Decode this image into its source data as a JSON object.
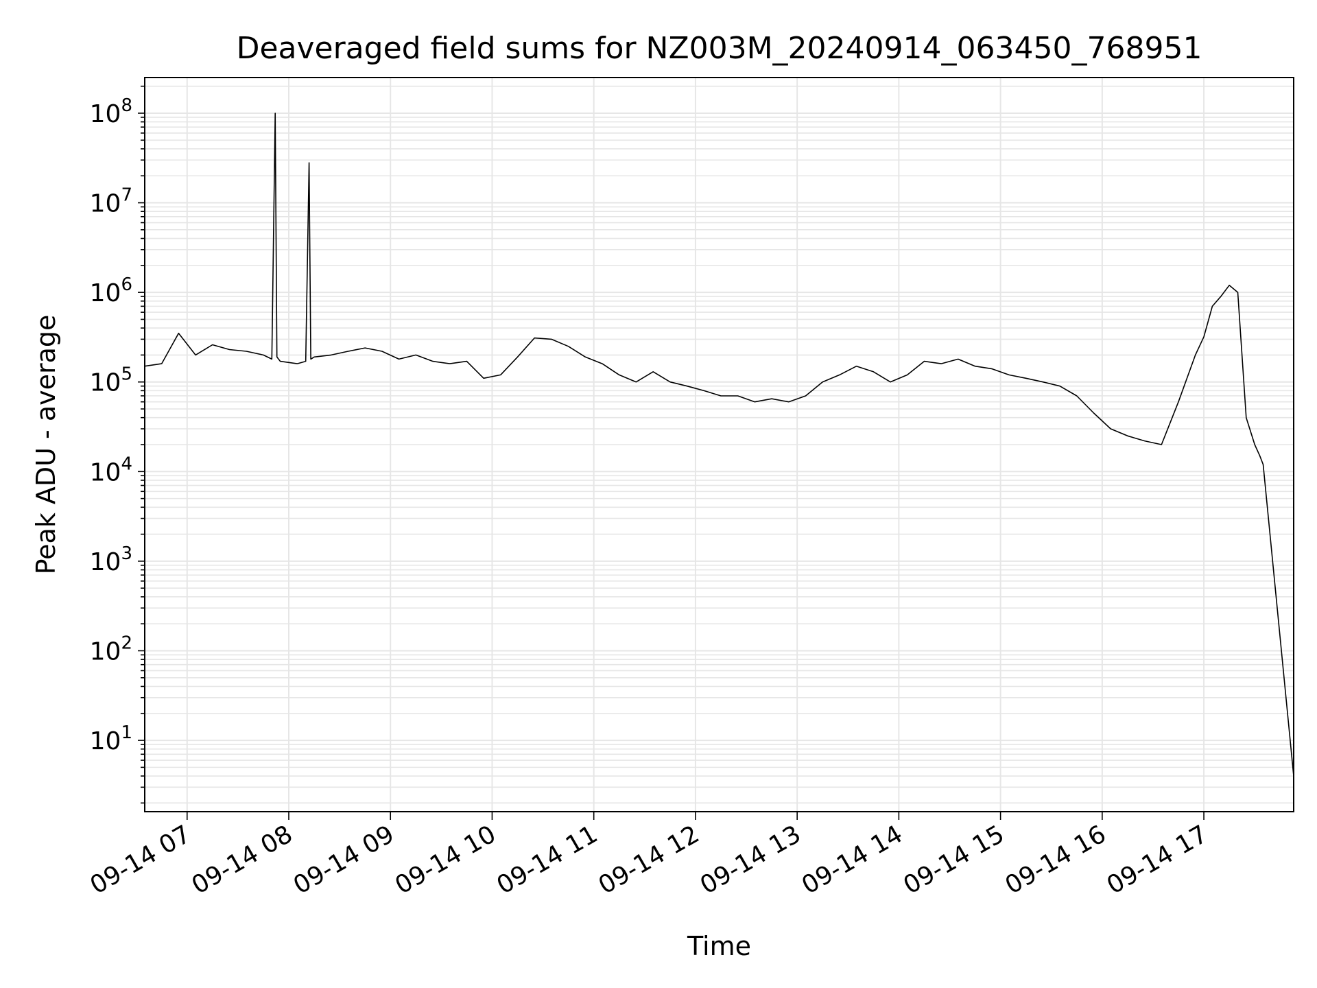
{
  "chart_data": {
    "type": "line",
    "title": "Deaveraged field sums for NZ003M_20240914_063450_768951",
    "xlabel": "Time",
    "ylabel": "Peak ADU - average",
    "yscale": "log",
    "ylim": [
      1.6,
      250000000
    ],
    "xlim": [
      "09-14 06:35",
      "09-14 17:53"
    ],
    "grid": true,
    "line_color": "#000000",
    "grid_color": "#e6e6e6",
    "x_ticks": [
      "09-14 07",
      "09-14 08",
      "09-14 09",
      "09-14 10",
      "09-14 11",
      "09-14 12",
      "09-14 13",
      "09-14 14",
      "09-14 15",
      "09-14 16",
      "09-14 17"
    ],
    "y_ticks": [
      {
        "value": 10,
        "base": "10",
        "exp": "1"
      },
      {
        "value": 100,
        "base": "10",
        "exp": "2"
      },
      {
        "value": 1000,
        "base": "10",
        "exp": "3"
      },
      {
        "value": 10000,
        "base": "10",
        "exp": "4"
      },
      {
        "value": 100000,
        "base": "10",
        "exp": "5"
      },
      {
        "value": 1000000,
        "base": "10",
        "exp": "6"
      },
      {
        "value": 10000000,
        "base": "10",
        "exp": "7"
      },
      {
        "value": 100000000,
        "base": "10",
        "exp": "8"
      }
    ],
    "series": [
      {
        "x": [
          "06:35",
          "06:45",
          "06:55",
          "07:05",
          "07:15",
          "07:25",
          "07:35",
          "07:45",
          "07:50",
          "07:52",
          "07:53",
          "07:55",
          "08:05",
          "08:10",
          "08:12",
          "08:13",
          "08:15",
          "08:25",
          "08:35",
          "08:45",
          "08:55",
          "09:05",
          "09:15",
          "09:25",
          "09:35",
          "09:45",
          "09:55",
          "10:05",
          "10:15",
          "10:25",
          "10:35",
          "10:45",
          "10:55",
          "11:05",
          "11:15",
          "11:25",
          "11:35",
          "11:45",
          "11:55",
          "12:05",
          "12:15",
          "12:25",
          "12:35",
          "12:45",
          "12:55",
          "13:05",
          "13:15",
          "13:25",
          "13:35",
          "13:45",
          "13:55",
          "14:05",
          "14:15",
          "14:25",
          "14:35",
          "14:45",
          "14:55",
          "15:05",
          "15:15",
          "15:25",
          "15:35",
          "15:45",
          "15:55",
          "16:05",
          "16:15",
          "16:25",
          "16:35",
          "16:45",
          "16:55",
          "17:00",
          "17:05",
          "17:10",
          "17:15",
          "17:20",
          "17:25",
          "17:30",
          "17:33",
          "17:35",
          "17:53"
        ],
        "y": [
          150000,
          160000,
          350000,
          200000,
          260000,
          230000,
          220000,
          200000,
          180000,
          100000000,
          190000,
          170000,
          160000,
          170000,
          28000000,
          180000,
          190000,
          200000,
          220000,
          240000,
          220000,
          180000,
          200000,
          170000,
          160000,
          170000,
          110000,
          120000,
          190000,
          310000,
          300000,
          250000,
          190000,
          160000,
          120000,
          100000,
          130000,
          100000,
          90000,
          80000,
          70000,
          70000,
          60000,
          65000,
          60000,
          70000,
          100000,
          120000,
          150000,
          130000,
          100000,
          120000,
          170000,
          160000,
          180000,
          150000,
          140000,
          120000,
          110000,
          100000,
          90000,
          70000,
          45000,
          30000,
          25000,
          22000,
          20000,
          60000,
          200000,
          320000,
          700000,
          900000,
          1200000,
          1000000,
          40000,
          20000,
          15000,
          12000,
          4
        ]
      }
    ]
  }
}
